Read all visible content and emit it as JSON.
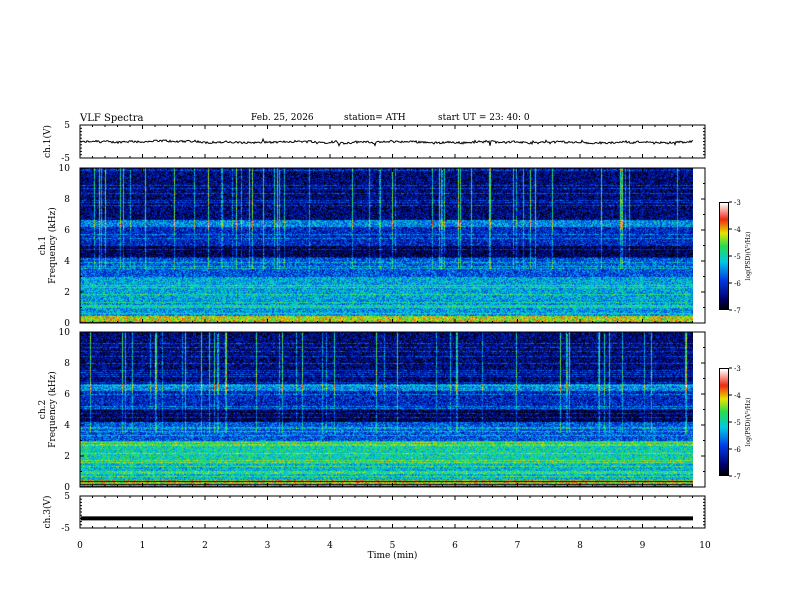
{
  "header": {
    "title": "VLF  Spectra",
    "date": "Feb. 25, 2026",
    "station": "station= ATH",
    "start": "start  UT  =   23: 40: 0"
  },
  "chart_data": [
    {
      "type": "line",
      "ylabel": "ch.1(V)",
      "ylim": [
        -5,
        5
      ],
      "yticks": [
        "5",
        "-5"
      ],
      "x_range": [
        0,
        9.8
      ],
      "description_level": "approx. 0 V noisy trace"
    },
    {
      "type": "heatmap",
      "ylabel": "ch.1\nFrequency  (kHz)",
      "ylim": [
        0,
        10
      ],
      "yticks": [
        "0",
        "2",
        "4",
        "6",
        "8",
        "10"
      ],
      "colorbar": {
        "label": "log(PSD)(V²/Hz)",
        "range": [
          -7,
          -3
        ],
        "ticks": [
          "-3",
          "-4",
          "-5",
          "-6",
          "-7"
        ]
      }
    },
    {
      "type": "heatmap",
      "ylabel": "ch.2\nFrequency  (kHz)",
      "ylim": [
        0,
        10
      ],
      "yticks": [
        "0",
        "2",
        "4",
        "6",
        "8",
        "10"
      ],
      "colorbar": {
        "label": "log(PSD)(V²/Hz)",
        "range": [
          -7,
          -3
        ],
        "ticks": [
          "-3",
          "-4",
          "-5",
          "-6",
          "-7"
        ]
      }
    },
    {
      "type": "line",
      "ylabel": "ch.3(V)",
      "ylim": [
        -5,
        5
      ],
      "yticks": [
        "5",
        "-5"
      ],
      "level": -2
    }
  ],
  "xaxis": {
    "label": "Time  (min)",
    "range": [
      0,
      10
    ],
    "ticks": [
      "0",
      "1",
      "2",
      "3",
      "4",
      "5",
      "6",
      "7",
      "8",
      "9",
      "10"
    ]
  },
  "colors": {
    "line": "#000000"
  }
}
